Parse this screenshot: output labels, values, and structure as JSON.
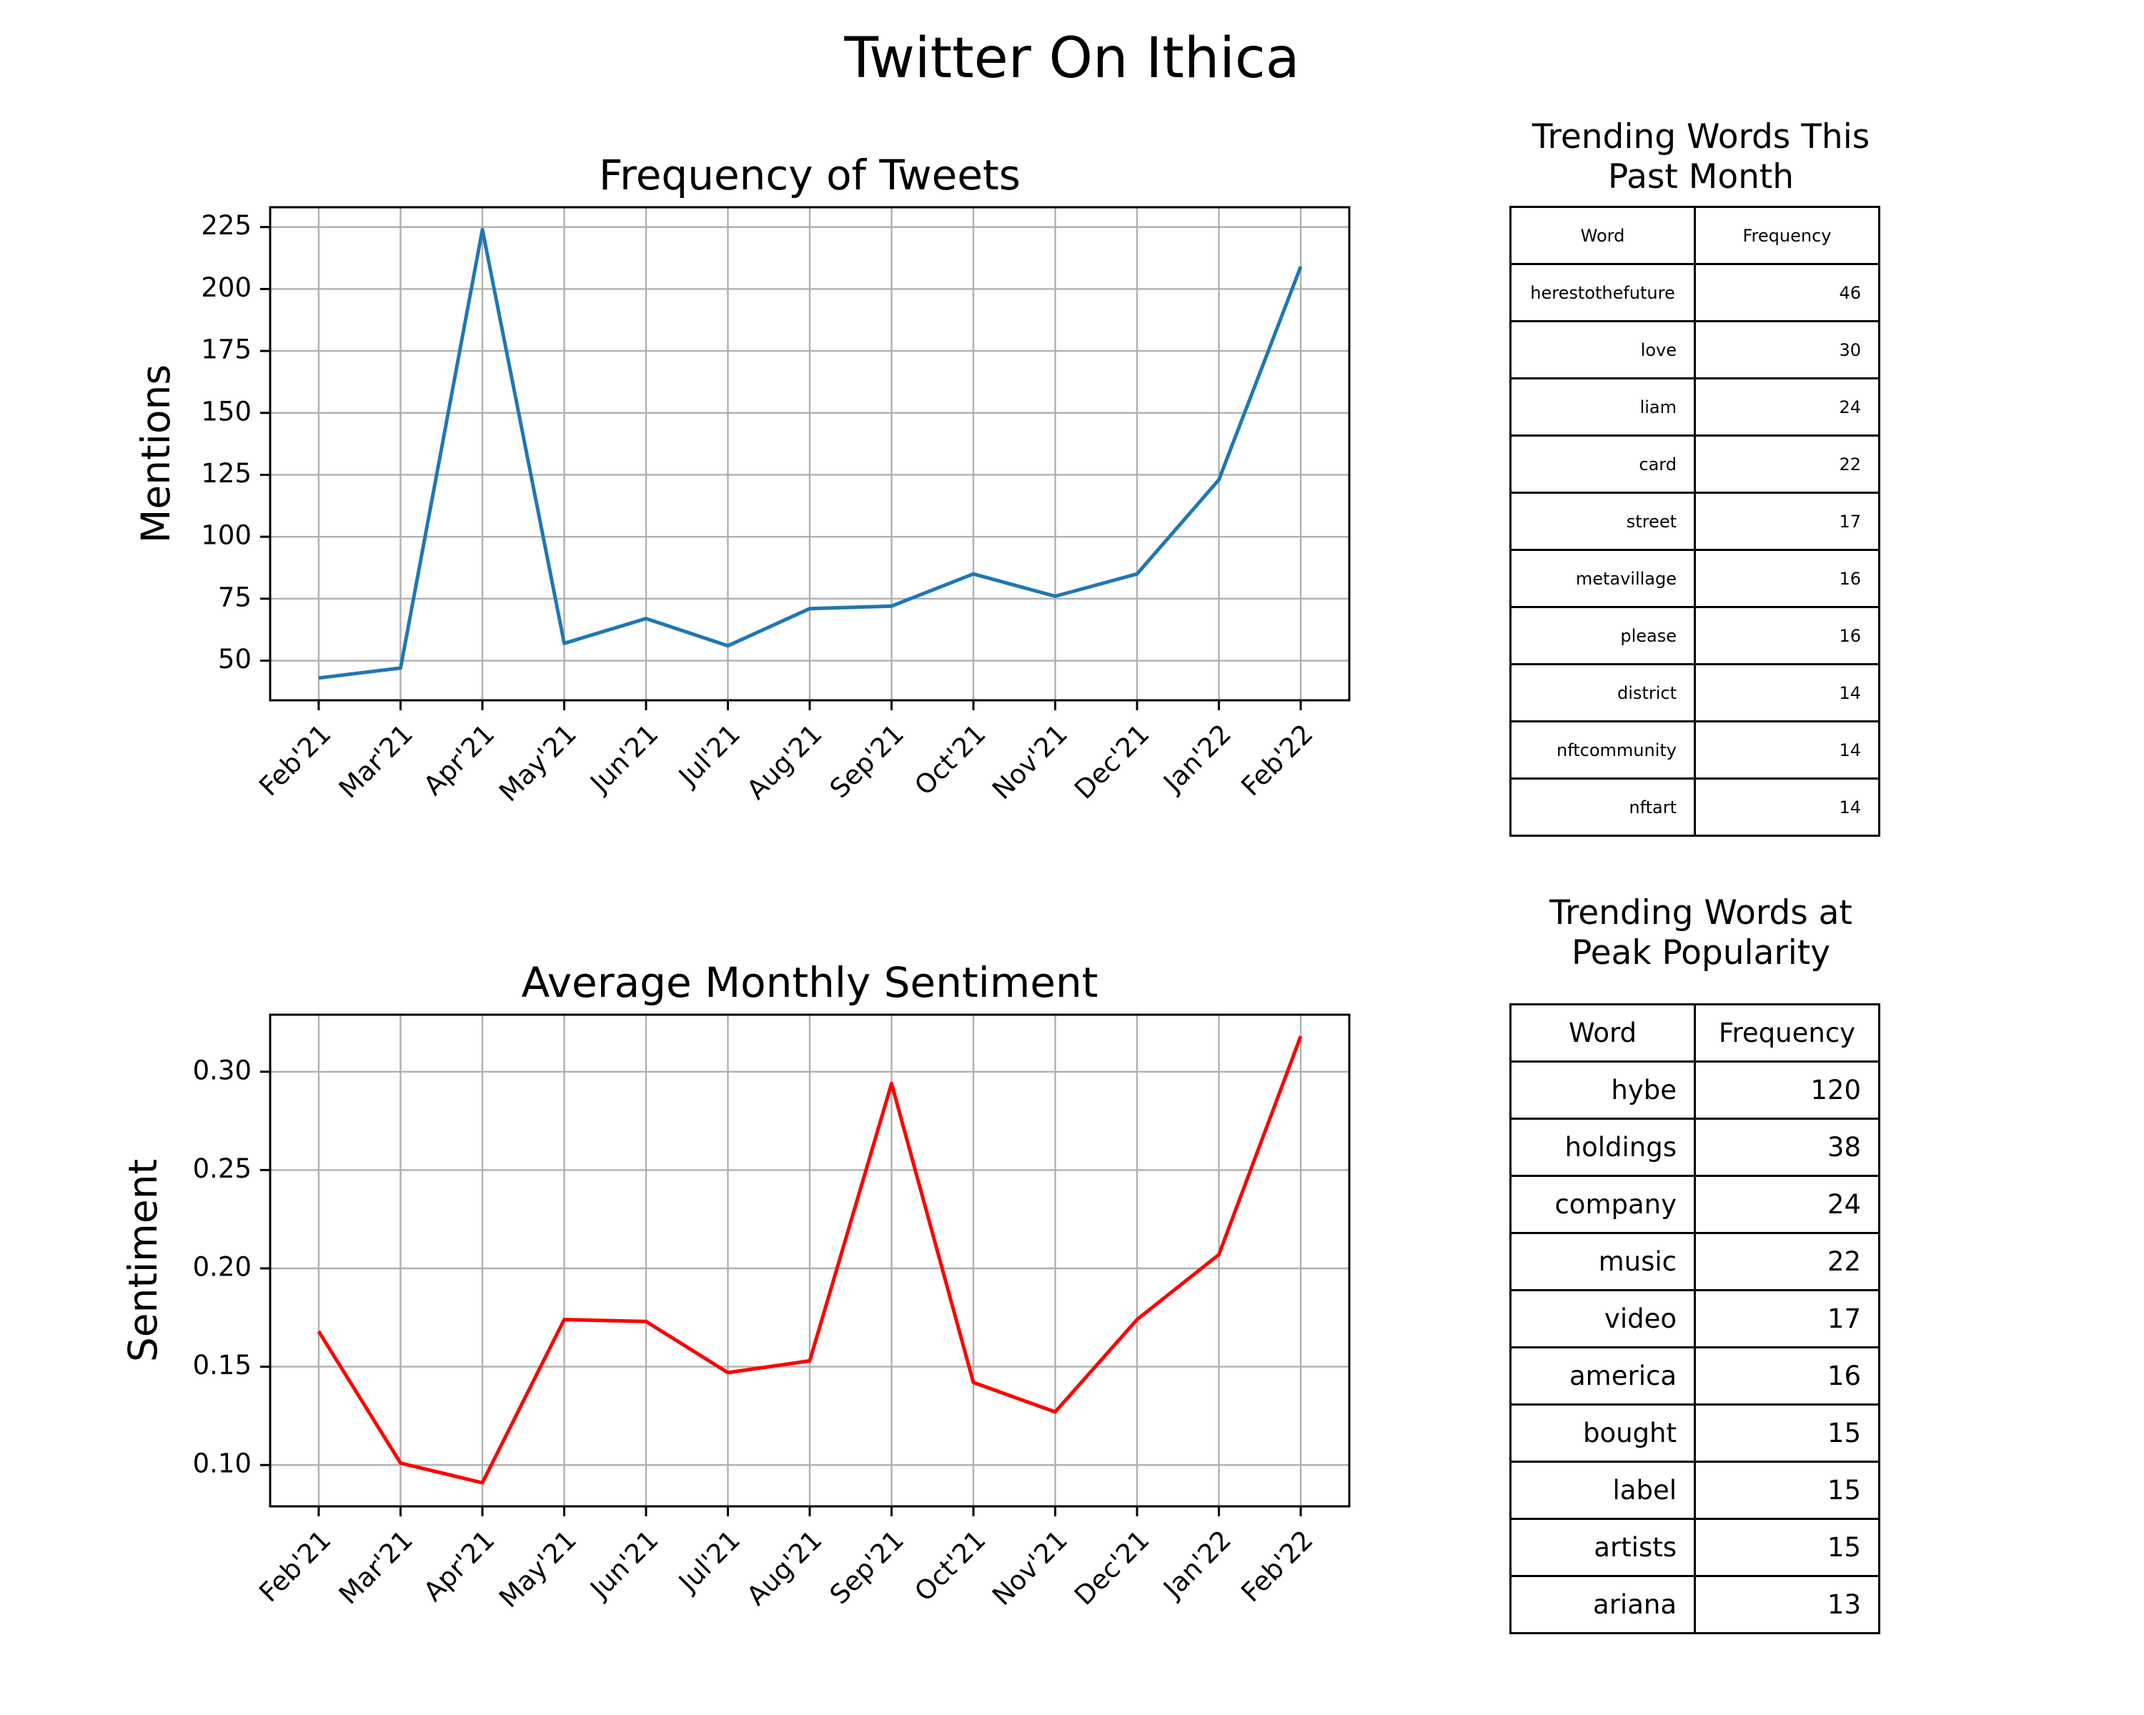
{
  "title": "Twitter On Ithica",
  "chart_data": [
    {
      "type": "line",
      "title": "Frequency of Tweets",
      "xlabel": "",
      "ylabel": "Mentions",
      "categories": [
        "Feb'21",
        "Mar'21",
        "Apr'21",
        "May'21",
        "Jun'21",
        "Jul'21",
        "Aug'21",
        "Sep'21",
        "Oct'21",
        "Nov'21",
        "Dec'21",
        "Jan'22",
        "Feb'22"
      ],
      "values": [
        43,
        47,
        224,
        57,
        67,
        56,
        71,
        72,
        85,
        76,
        85,
        123,
        209
      ],
      "yticks": [
        50,
        75,
        100,
        125,
        150,
        175,
        200,
        225
      ],
      "ytick_labels": [
        "50",
        "75",
        "100",
        "125",
        "150",
        "175",
        "200",
        "225"
      ],
      "ylim": [
        34,
        233
      ],
      "grid": true,
      "color": "#1f77b4"
    },
    {
      "type": "line",
      "title": "Average Monthly Sentiment",
      "xlabel": "",
      "ylabel": "Sentiment",
      "categories": [
        "Feb'21",
        "Mar'21",
        "Apr'21",
        "May'21",
        "Jun'21",
        "Jul'21",
        "Aug'21",
        "Sep'21",
        "Oct'21",
        "Nov'21",
        "Dec'21",
        "Jan'22",
        "Feb'22"
      ],
      "values": [
        0.168,
        0.101,
        0.091,
        0.174,
        0.173,
        0.147,
        0.153,
        0.294,
        0.142,
        0.127,
        0.174,
        0.207,
        0.318
      ],
      "yticks": [
        0.1,
        0.15,
        0.2,
        0.25,
        0.3
      ],
      "ytick_labels": [
        "0.10",
        "0.15",
        "0.20",
        "0.25",
        "0.30"
      ],
      "ylim": [
        0.079,
        0.329
      ],
      "grid": true,
      "color": "#ff0000"
    },
    {
      "type": "table",
      "title": "Trending Words This Past Month",
      "title_lines": [
        "Trending Words This",
        "Past Month"
      ],
      "columns": [
        "Word",
        "Frequency"
      ],
      "rows": [
        [
          "herestothefuture",
          "46"
        ],
        [
          "love",
          "30"
        ],
        [
          "liam",
          "24"
        ],
        [
          "card",
          "22"
        ],
        [
          "street",
          "17"
        ],
        [
          "metavillage",
          "16"
        ],
        [
          "please",
          "16"
        ],
        [
          "district",
          "14"
        ],
        [
          "nftcommunity",
          "14"
        ],
        [
          "nftart",
          "14"
        ]
      ]
    },
    {
      "type": "table",
      "title": "Trending Words at Peak Popularity",
      "title_lines": [
        "Trending Words at",
        "Peak Popularity"
      ],
      "columns": [
        "Word",
        "Frequency"
      ],
      "rows": [
        [
          "hybe",
          "120"
        ],
        [
          "holdings",
          "38"
        ],
        [
          "company",
          "24"
        ],
        [
          "music",
          "22"
        ],
        [
          "video",
          "17"
        ],
        [
          "america",
          "16"
        ],
        [
          "bought",
          "15"
        ],
        [
          "label",
          "15"
        ],
        [
          "artists",
          "15"
        ],
        [
          "ariana",
          "13"
        ]
      ]
    }
  ]
}
